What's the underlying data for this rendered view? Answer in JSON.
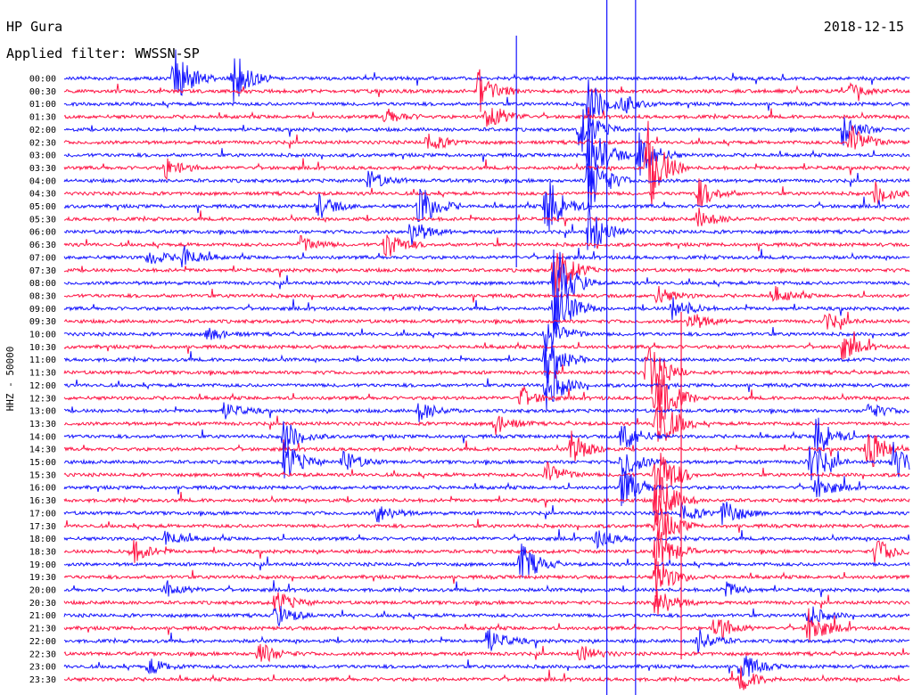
{
  "header": {
    "station": "HP Gura",
    "date": "2018-12-15",
    "filter_label": "Applied filter: WWSSN-SP"
  },
  "chart_data": {
    "type": "line",
    "ylabel": "HHZ - 50000",
    "colors": {
      "even_row": "#1414ff",
      "odd_row": "#ff1444"
    },
    "rows": [
      {
        "time": "00:00",
        "events": [
          [
            0.13,
            35
          ],
          [
            0.2,
            30
          ]
        ]
      },
      {
        "time": "00:30",
        "events": [
          [
            0.49,
            25
          ],
          [
            0.93,
            8
          ]
        ]
      },
      {
        "time": "01:00",
        "events": [
          [
            0.62,
            30
          ],
          [
            0.66,
            10
          ]
        ]
      },
      {
        "time": "01:30",
        "events": [
          [
            0.38,
            10
          ],
          [
            0.5,
            20
          ]
        ]
      },
      {
        "time": "02:00",
        "events": [
          [
            0.61,
            30
          ],
          [
            0.92,
            20
          ]
        ]
      },
      {
        "time": "02:30",
        "events": [
          [
            0.43,
            12
          ],
          [
            0.93,
            22
          ]
        ]
      },
      {
        "time": "03:00",
        "events": [
          [
            0.62,
            45
          ],
          [
            0.68,
            30
          ]
        ]
      },
      {
        "time": "03:30",
        "events": [
          [
            0.12,
            12
          ],
          [
            0.69,
            55
          ]
        ]
      },
      {
        "time": "04:00",
        "events": [
          [
            0.36,
            12
          ],
          [
            0.62,
            40
          ]
        ]
      },
      {
        "time": "04:30",
        "events": [
          [
            0.75,
            18
          ],
          [
            0.96,
            15
          ]
        ]
      },
      {
        "time": "05:00",
        "events": [
          [
            0.3,
            15
          ],
          [
            0.42,
            28
          ],
          [
            0.57,
            40
          ]
        ]
      },
      {
        "time": "05:30",
        "events": [
          [
            0.75,
            12
          ]
        ]
      },
      {
        "time": "06:00",
        "events": [
          [
            0.41,
            16
          ],
          [
            0.62,
            30
          ]
        ]
      },
      {
        "time": "06:30",
        "events": [
          [
            0.38,
            18
          ],
          [
            0.28,
            10
          ]
        ]
      },
      {
        "time": "07:00",
        "events": [
          [
            0.1,
            10
          ],
          [
            0.14,
            14
          ]
        ]
      },
      {
        "time": "07:30",
        "events": [
          [
            0.58,
            35
          ]
        ]
      },
      {
        "time": "08:00",
        "events": [
          [
            0.58,
            50
          ]
        ]
      },
      {
        "time": "08:30",
        "events": [
          [
            0.7,
            12
          ],
          [
            0.84,
            10
          ]
        ]
      },
      {
        "time": "09:00",
        "events": [
          [
            0.58,
            40
          ],
          [
            0.72,
            15
          ]
        ]
      },
      {
        "time": "09:30",
        "events": [
          [
            0.74,
            12
          ],
          [
            0.9,
            10
          ]
        ]
      },
      {
        "time": "10:00",
        "events": [
          [
            0.57,
            25
          ],
          [
            0.17,
            8
          ]
        ]
      },
      {
        "time": "10:30",
        "events": [
          [
            0.92,
            16
          ]
        ]
      },
      {
        "time": "11:00",
        "events": [
          [
            0.57,
            30
          ]
        ]
      },
      {
        "time": "11:30",
        "events": [
          [
            0.69,
            40
          ]
        ]
      },
      {
        "time": "12:00",
        "events": [
          [
            0.57,
            30
          ]
        ]
      },
      {
        "time": "12:30",
        "events": [
          [
            0.54,
            12
          ],
          [
            0.7,
            45
          ]
        ]
      },
      {
        "time": "13:00",
        "events": [
          [
            0.19,
            10
          ],
          [
            0.42,
            12
          ],
          [
            0.95,
            10
          ]
        ]
      },
      {
        "time": "13:30",
        "events": [
          [
            0.51,
            12
          ],
          [
            0.7,
            40
          ]
        ]
      },
      {
        "time": "14:00",
        "events": [
          [
            0.26,
            20
          ],
          [
            0.66,
            20
          ],
          [
            0.89,
            25
          ]
        ]
      },
      {
        "time": "14:30",
        "events": [
          [
            0.6,
            20
          ],
          [
            0.95,
            30
          ]
        ]
      },
      {
        "time": "15:00",
        "events": [
          [
            0.26,
            25
          ],
          [
            0.33,
            14
          ],
          [
            0.66,
            22
          ],
          [
            0.88,
            30
          ],
          [
            0.98,
            25
          ]
        ]
      },
      {
        "time": "15:30",
        "events": [
          [
            0.57,
            16
          ],
          [
            0.7,
            45
          ]
        ]
      },
      {
        "time": "16:00",
        "events": [
          [
            0.66,
            25
          ],
          [
            0.89,
            15
          ]
        ]
      },
      {
        "time": "16:30",
        "events": [
          [
            0.7,
            40
          ]
        ]
      },
      {
        "time": "17:00",
        "events": [
          [
            0.37,
            12
          ],
          [
            0.78,
            18
          ],
          [
            0.73,
            12
          ]
        ]
      },
      {
        "time": "17:30",
        "events": [
          [
            0.7,
            30
          ]
        ]
      },
      {
        "time": "18:00",
        "events": [
          [
            0.12,
            10
          ],
          [
            0.63,
            12
          ]
        ]
      },
      {
        "time": "18:30",
        "events": [
          [
            0.08,
            14
          ],
          [
            0.7,
            30
          ],
          [
            0.96,
            16
          ]
        ]
      },
      {
        "time": "19:00",
        "events": [
          [
            0.54,
            25
          ]
        ]
      },
      {
        "time": "19:30",
        "events": [
          [
            0.7,
            25
          ]
        ]
      },
      {
        "time": "20:00",
        "events": [
          [
            0.12,
            10
          ],
          [
            0.78,
            10
          ]
        ]
      },
      {
        "time": "20:30",
        "events": [
          [
            0.25,
            14
          ],
          [
            0.7,
            20
          ]
        ]
      },
      {
        "time": "21:00",
        "events": [
          [
            0.25,
            14
          ],
          [
            0.88,
            12
          ]
        ]
      },
      {
        "time": "21:30",
        "events": [
          [
            0.77,
            18
          ],
          [
            0.88,
            22
          ]
        ]
      },
      {
        "time": "22:00",
        "events": [
          [
            0.5,
            16
          ],
          [
            0.75,
            14
          ]
        ]
      },
      {
        "time": "22:30",
        "events": [
          [
            0.23,
            14
          ],
          [
            0.61,
            10
          ]
        ]
      },
      {
        "time": "23:00",
        "events": [
          [
            0.1,
            10
          ],
          [
            0.8,
            18
          ]
        ]
      },
      {
        "time": "23:30",
        "events": [
          [
            0.8,
            14
          ]
        ]
      }
    ]
  }
}
